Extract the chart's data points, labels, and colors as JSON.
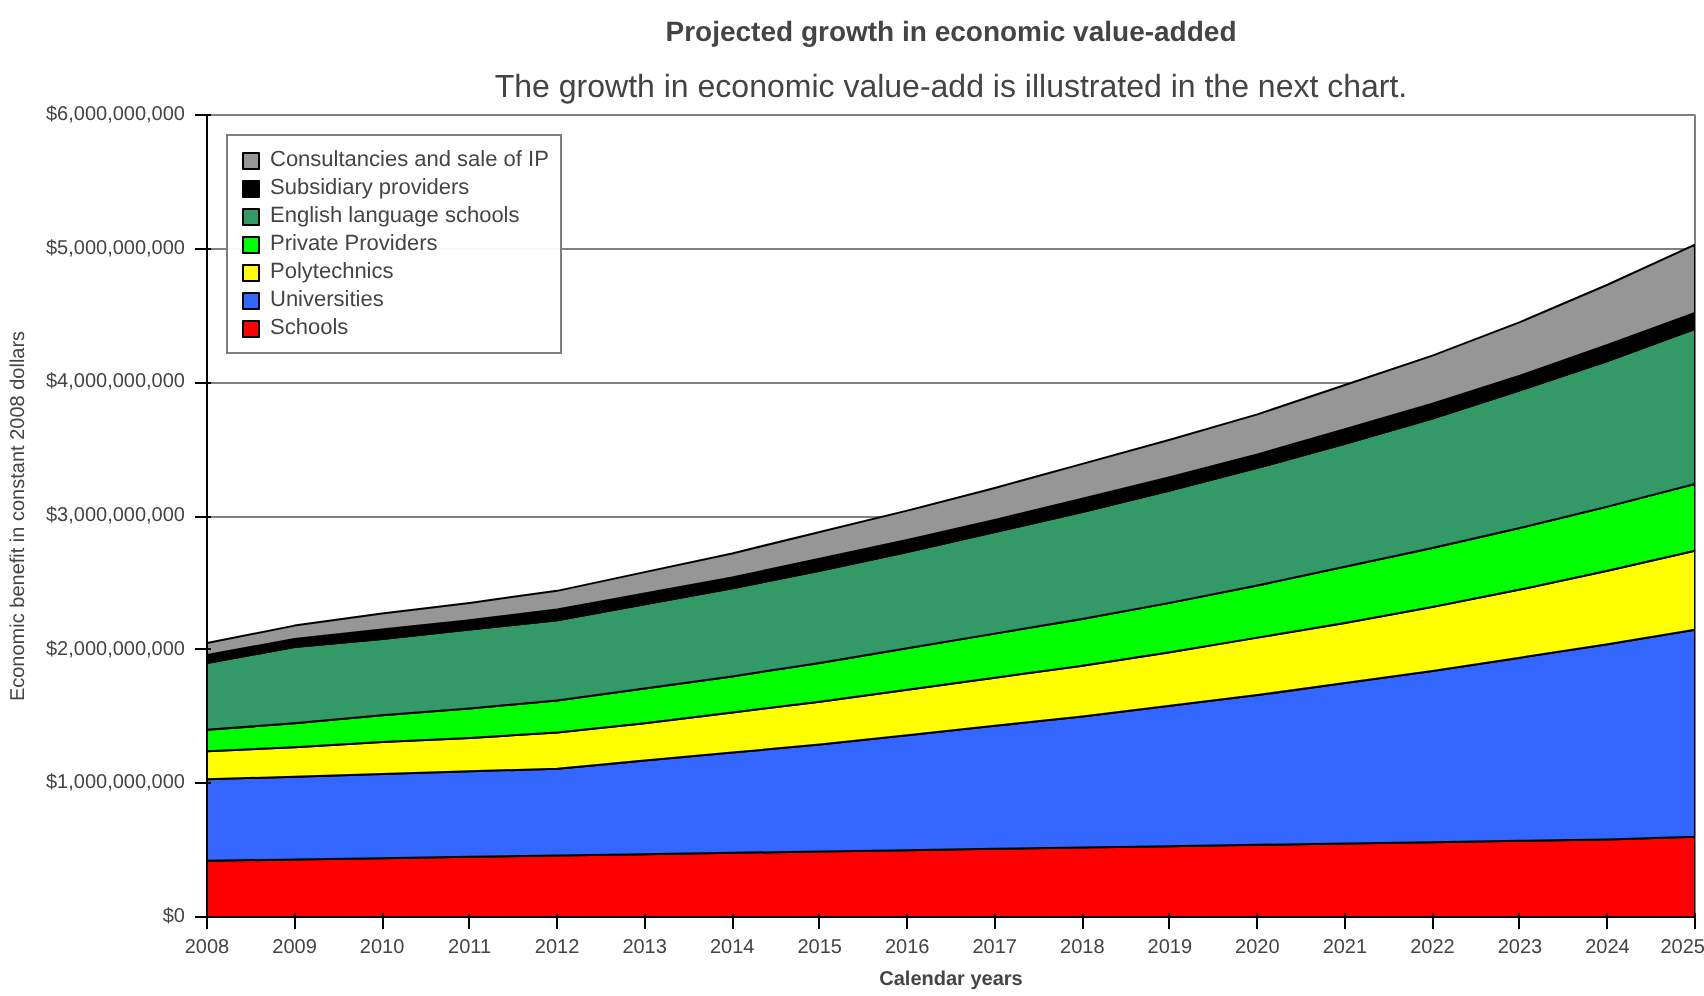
{
  "chart_data": {
    "type": "area",
    "stacked": true,
    "title": "Projected growth in economic value-added",
    "annotations": [
      "The growth in economic value-add is illustrated in the next chart."
    ],
    "xlabel": "Calendar years",
    "ylabel": "Economic benefit in constant 2008 dollars",
    "x": [
      2008,
      2009,
      2010,
      2011,
      2012,
      2013,
      2014,
      2015,
      2016,
      2017,
      2018,
      2019,
      2020,
      2021,
      2022,
      2023,
      2024,
      2025
    ],
    "xlim": [
      2008,
      2025
    ],
    "xticks": [
      2008,
      2009,
      2010,
      2011,
      2012,
      2013,
      2014,
      2015,
      2016,
      2017,
      2018,
      2019,
      2020,
      2021,
      2022,
      2023,
      2024,
      2025
    ],
    "ylim": [
      0,
      6000000000
    ],
    "yticks": [
      {
        "value": 0,
        "label": "$0"
      },
      {
        "value": 1000000000,
        "label": "$1,000,000,000"
      },
      {
        "value": 2000000000,
        "label": "$2,000,000,000"
      },
      {
        "value": 3000000000,
        "label": "$3,000,000,000"
      },
      {
        "value": 4000000000,
        "label": "$4,000,000,000"
      },
      {
        "value": 5000000000,
        "label": "$5,000,000,000"
      },
      {
        "value": 6000000000,
        "label": "$6,000,000,000"
      }
    ],
    "grid": "y",
    "legend": "top left",
    "series": [
      {
        "name": "Schools",
        "color": "#ff0000",
        "values": [
          420000000,
          430000000,
          440000000,
          450000000,
          460000000,
          470000000,
          480000000,
          490000000,
          500000000,
          510000000,
          520000000,
          530000000,
          540000000,
          550000000,
          560000000,
          570000000,
          580000000,
          600000000
        ]
      },
      {
        "name": "Universities",
        "color": "#3366ff",
        "values": [
          610000000,
          620000000,
          630000000,
          640000000,
          650000000,
          700000000,
          750000000,
          800000000,
          860000000,
          920000000,
          980000000,
          1050000000,
          1120000000,
          1200000000,
          1280000000,
          1370000000,
          1460000000,
          1550000000
        ]
      },
      {
        "name": "Polytechnics",
        "color": "#ffff00",
        "values": [
          210000000,
          220000000,
          240000000,
          250000000,
          270000000,
          280000000,
          300000000,
          320000000,
          340000000,
          360000000,
          380000000,
          400000000,
          430000000,
          450000000,
          480000000,
          510000000,
          550000000,
          590000000
        ]
      },
      {
        "name": "Private Providers",
        "color": "#00ff00",
        "values": [
          160000000,
          180000000,
          200000000,
          220000000,
          240000000,
          260000000,
          270000000,
          290000000,
          310000000,
          330000000,
          350000000,
          370000000,
          390000000,
          420000000,
          440000000,
          460000000,
          480000000,
          500000000
        ]
      },
      {
        "name": "English language schools",
        "color": "#339966",
        "values": [
          500000000,
          570000000,
          570000000,
          590000000,
          600000000,
          630000000,
          660000000,
          690000000,
          720000000,
          760000000,
          800000000,
          840000000,
          880000000,
          920000000,
          970000000,
          1030000000,
          1090000000,
          1160000000
        ]
      },
      {
        "name": "Subsidiary providers",
        "color": "#000000",
        "values": [
          60000000,
          60000000,
          70000000,
          70000000,
          80000000,
          80000000,
          80000000,
          90000000,
          90000000,
          90000000,
          100000000,
          100000000,
          100000000,
          110000000,
          110000000,
          110000000,
          120000000,
          120000000
        ]
      },
      {
        "name": "Consultancies and sale of IP",
        "color": "#969696",
        "values": [
          90000000,
          100000000,
          120000000,
          130000000,
          140000000,
          160000000,
          180000000,
          200000000,
          220000000,
          240000000,
          260000000,
          280000000,
          300000000,
          330000000,
          360000000,
          400000000,
          450000000,
          510000000
        ]
      }
    ]
  }
}
